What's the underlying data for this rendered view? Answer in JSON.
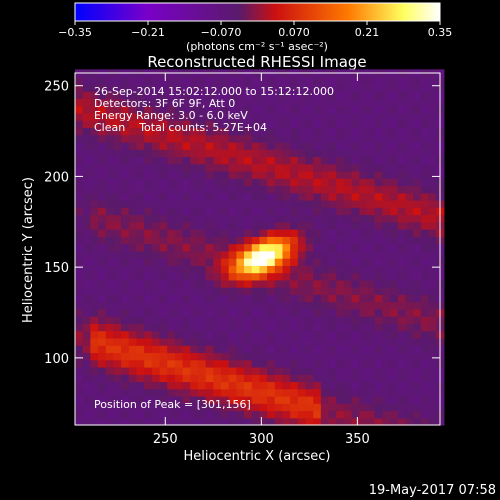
{
  "chart_data": {
    "type": "heatmap",
    "title": "Reconstructed RHESSI Image",
    "xlabel": "Heliocentric X (arcsec)",
    "ylabel": "Heliocentric Y (arcsec)",
    "xlim": [
      203,
      393
    ],
    "ylim": [
      63,
      257
    ],
    "xticks": [
      250,
      300,
      350
    ],
    "yticks": [
      100,
      150,
      200,
      250
    ],
    "colorbar": {
      "min": -0.35,
      "max": 0.35,
      "ticks": [
        -0.35,
        -0.21,
        -0.07,
        0.07,
        0.21,
        0.35
      ],
      "tick_labels": [
        "−0.35",
        "−0.21",
        "−0.070",
        "0.070",
        "0.21",
        "0.35"
      ],
      "unit_label": "(photons cm⁻² s⁻¹ asec⁻²)",
      "colors": [
        "#0000ff",
        "#7a00c8",
        "#5a1a6a",
        "#cc1010",
        "#ff7a00",
        "#ffff60",
        "#ffffff"
      ]
    },
    "sources": [
      {
        "x": 301,
        "y": 156,
        "peak": 0.35,
        "desc": "main peak"
      },
      {
        "band": "lower arc",
        "x_range": [
          210,
          330
        ],
        "y_center_at_x210": 110,
        "slope": -0.32,
        "level": 0.14
      },
      {
        "band": "upper arc",
        "x_range": [
          203,
          393
        ],
        "y_center_at_x210": 236,
        "slope": -0.32,
        "level": 0.08
      },
      {
        "band": "middle arc",
        "x_range": [
          210,
          393
        ],
        "y_center_at_x210": 178,
        "slope": -0.32,
        "level": 0.05
      }
    ],
    "annotations": [
      "26-Sep-2014 15:02:12.000 to 15:12:12.000",
      "Detectors: 3F 6F 9F, Att 0",
      "Energy Range: 3.0 - 6.0 keV",
      "Clean    Total counts: 5.27E+04",
      "Position of Peak = [301,156]"
    ]
  },
  "footer": {
    "timestamp": "19-May-2017 07:58"
  }
}
